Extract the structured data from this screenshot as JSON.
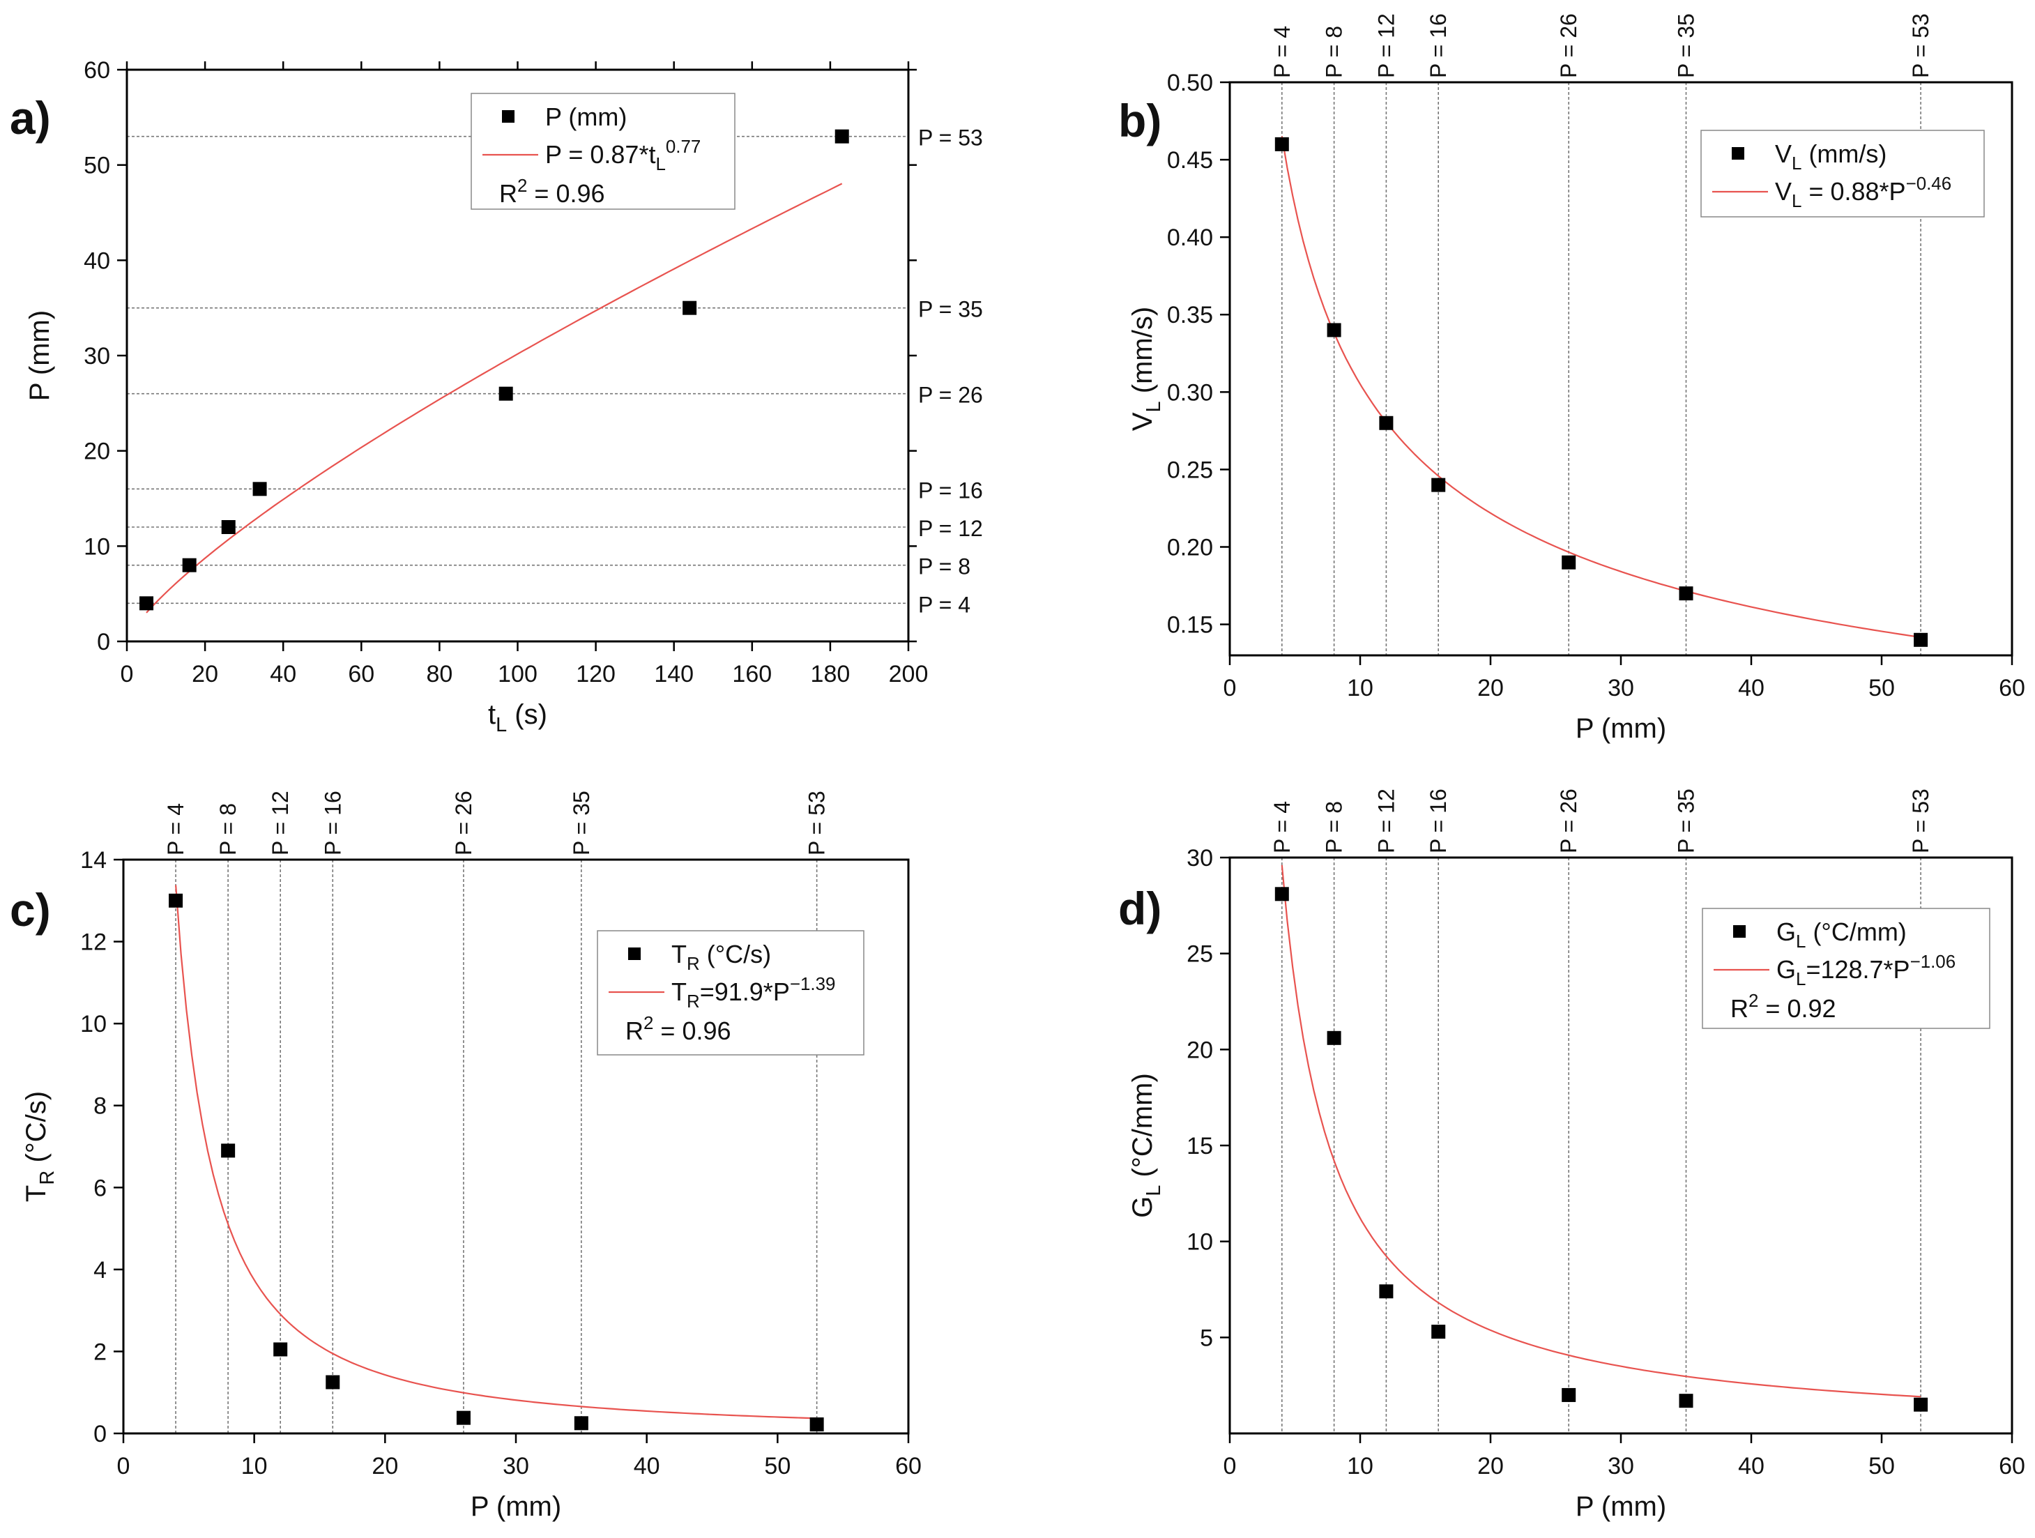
{
  "figure": {
    "colors": {
      "axis": "#000000",
      "marker": "#000000",
      "fit_line": "#e8534f",
      "guide_line": "#777777",
      "legend_border": "#888888"
    }
  },
  "chart_data": [
    {
      "panel_label": "a)",
      "type": "scatter",
      "xlabel": {
        "main": "t",
        "sub": "L",
        "tail": " (s)"
      },
      "ylabel": {
        "main": "P (mm)",
        "sub": "",
        "tail": ""
      },
      "xlim": [
        0,
        200
      ],
      "ylim": [
        0,
        60
      ],
      "xticks": [
        0,
        20,
        40,
        60,
        80,
        100,
        120,
        140,
        160,
        180,
        200
      ],
      "yticks": [
        0,
        10,
        20,
        30,
        40,
        50,
        60
      ],
      "series": [
        {
          "name": "P (mm)",
          "x": [
            5,
            16,
            26,
            34,
            97,
            144,
            183
          ],
          "y": [
            4,
            8,
            12,
            16,
            26,
            35,
            53
          ]
        }
      ],
      "fit": {
        "form": "power",
        "a": 0.87,
        "b": 0.77,
        "x_range": [
          5,
          183
        ]
      },
      "guides": {
        "orientation": "horizontal",
        "values": [
          4,
          8,
          12,
          16,
          26,
          35,
          53
        ],
        "labels": [
          "P = 4",
          "P = 8",
          "P = 12",
          "P = 16",
          "P = 26",
          "P = 35",
          "P = 53"
        ]
      },
      "legend": {
        "marker_label": [
          {
            "t": "P (mm)"
          }
        ],
        "fit_label": [
          {
            "t": "P = 0.87*t"
          },
          {
            "t": "L",
            "s": "sub"
          },
          {
            "t": "0.77",
            "s": "sup"
          }
        ],
        "r2_label": [
          {
            "t": "R"
          },
          {
            "t": "2",
            "s": "sup"
          },
          {
            "t": " = 0.96"
          }
        ]
      }
    },
    {
      "panel_label": "b)",
      "type": "scatter",
      "xlabel": {
        "main": "P (mm)",
        "sub": "",
        "tail": ""
      },
      "ylabel": {
        "main": "V",
        "sub": "L",
        "tail": " (mm/s)"
      },
      "xlim": [
        0,
        60
      ],
      "ylim": [
        0.13,
        0.5
      ],
      "xticks": [
        0,
        10,
        20,
        30,
        40,
        50,
        60
      ],
      "yticks": [
        0.15,
        0.2,
        0.25,
        0.3,
        0.35,
        0.4,
        0.45,
        0.5
      ],
      "ytick_labels": [
        "0.15",
        "0.20",
        "0.25",
        "0.30",
        "0.35",
        "0.40",
        "0.45",
        "0.50"
      ],
      "series": [
        {
          "name": "V_L (mm/s)",
          "x": [
            4,
            8,
            12,
            16,
            26,
            35,
            53
          ],
          "y": [
            0.46,
            0.34,
            0.28,
            0.24,
            0.19,
            0.17,
            0.14
          ]
        }
      ],
      "fit": {
        "form": "power",
        "a": 0.88,
        "b": -0.46,
        "x_range": [
          4,
          53
        ]
      },
      "guides": {
        "orientation": "vertical",
        "values": [
          4,
          8,
          12,
          16,
          26,
          35,
          53
        ],
        "labels": [
          "P = 4",
          "P = 8",
          "P = 12",
          "P = 16",
          "P = 26",
          "P = 35",
          "P = 53"
        ]
      },
      "legend": {
        "marker_label": [
          {
            "t": "V"
          },
          {
            "t": "L",
            "s": "sub"
          },
          {
            "t": " (mm/s)"
          }
        ],
        "fit_label": [
          {
            "t": "V"
          },
          {
            "t": "L",
            "s": "sub"
          },
          {
            "t": " = 0.88*P"
          },
          {
            "t": "−0.46",
            "s": "sup"
          }
        ]
      }
    },
    {
      "panel_label": "c)",
      "type": "scatter",
      "xlabel": {
        "main": "P (mm)",
        "sub": "",
        "tail": ""
      },
      "ylabel": {
        "main": "T",
        "sub": "R",
        "tail": " (°C/s)"
      },
      "xlim": [
        0,
        60
      ],
      "ylim": [
        0,
        14
      ],
      "xticks": [
        0,
        10,
        20,
        30,
        40,
        50,
        60
      ],
      "yticks": [
        0,
        2,
        4,
        6,
        8,
        10,
        12,
        14
      ],
      "series": [
        {
          "name": "T_R (°C/s)",
          "x": [
            4,
            8,
            12,
            16,
            26,
            35,
            53
          ],
          "y": [
            13.0,
            6.9,
            2.05,
            1.25,
            0.38,
            0.25,
            0.22
          ]
        }
      ],
      "fit": {
        "form": "power",
        "a": 91.9,
        "b": -1.39,
        "x_range": [
          4,
          53
        ]
      },
      "guides": {
        "orientation": "vertical",
        "values": [
          4,
          8,
          12,
          16,
          26,
          35,
          53
        ],
        "labels": [
          "P = 4",
          "P = 8",
          "P = 12",
          "P = 16",
          "P = 26",
          "P = 35",
          "P = 53"
        ]
      },
      "legend": {
        "marker_label": [
          {
            "t": "T"
          },
          {
            "t": "R",
            "s": "sub"
          },
          {
            "t": " (°C/s)"
          }
        ],
        "fit_label": [
          {
            "t": "T"
          },
          {
            "t": "R",
            "s": "sub"
          },
          {
            "t": "=91.9*P"
          },
          {
            "t": "−1.39",
            "s": "sup"
          }
        ],
        "r2_label": [
          {
            "t": "R"
          },
          {
            "t": "2",
            "s": "sup"
          },
          {
            "t": " = 0.96"
          }
        ]
      }
    },
    {
      "panel_label": "d)",
      "type": "scatter",
      "xlabel": {
        "main": "P (mm)",
        "sub": "",
        "tail": ""
      },
      "ylabel": {
        "main": "G",
        "sub": "L",
        "tail": " (°C/mm)"
      },
      "xlim": [
        0,
        60
      ],
      "ylim": [
        0,
        30
      ],
      "xticks": [
        0,
        10,
        20,
        30,
        40,
        50,
        60
      ],
      "yticks": [
        5,
        10,
        15,
        20,
        25,
        30
      ],
      "series": [
        {
          "name": "G_L (°C/mm)",
          "x": [
            4,
            8,
            12,
            16,
            26,
            35,
            53
          ],
          "y": [
            28.1,
            20.6,
            7.4,
            5.3,
            2.0,
            1.7,
            1.5
          ]
        }
      ],
      "fit": {
        "form": "power",
        "a": 128.7,
        "b": -1.06,
        "x_range": [
          4,
          53
        ]
      },
      "guides": {
        "orientation": "vertical",
        "values": [
          4,
          8,
          12,
          16,
          26,
          35,
          53
        ],
        "labels": [
          "P = 4",
          "P = 8",
          "P = 12",
          "P = 16",
          "P = 26",
          "P = 35",
          "P = 53"
        ]
      },
      "legend": {
        "marker_label": [
          {
            "t": "G"
          },
          {
            "t": "L",
            "s": "sub"
          },
          {
            "t": " (°C/mm)"
          }
        ],
        "fit_label": [
          {
            "t": "G"
          },
          {
            "t": "L",
            "s": "sub"
          },
          {
            "t": "=128.7*P"
          },
          {
            "t": "−1.06",
            "s": "sup"
          }
        ],
        "r2_label": [
          {
            "t": "R"
          },
          {
            "t": "2",
            "s": "sup"
          },
          {
            "t": " = 0.92"
          }
        ]
      }
    }
  ]
}
